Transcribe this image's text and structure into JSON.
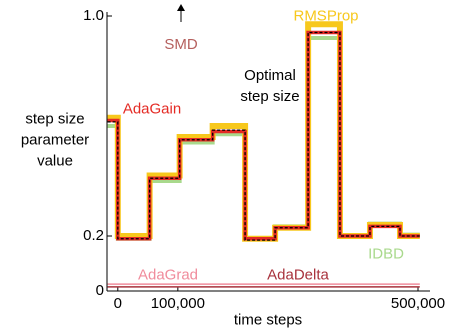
{
  "chart_data": {
    "type": "line",
    "step": "post",
    "xlabel": "time steps",
    "ylabel": "step size parameter value",
    "x": [
      -17000,
      0,
      53000,
      103000,
      158000,
      212000,
      262000,
      317000,
      370000,
      420000,
      470000,
      503000
    ],
    "xlim": [
      -18000,
      520000
    ],
    "xticks": [
      0,
      {
        "value": 100000,
        "label": "100,000"
      },
      {
        "value": 500000,
        "label": "500,000"
      }
    ],
    "ylim": [
      0,
      1.0
    ],
    "yticks": [
      0,
      0.2,
      {
        "value": 1.0,
        "label": "1.0"
      }
    ],
    "series": [
      {
        "name": "IDBD",
        "color": "#a9d98c",
        "values": [
          0.6,
          0.19,
          0.4,
          0.54,
          0.57,
          0.19,
          0.235,
          0.92,
          0.2,
          0.245,
          0.205,
          0.205
        ]
      },
      {
        "name": "RMSProp",
        "color": "#f7c81c",
        "values": [
          0.63,
          0.2,
          0.42,
          0.56,
          0.6,
          0.19,
          0.23,
          0.97,
          0.2,
          0.24,
          0.2,
          0.2
        ]
      },
      {
        "name": "AdaGain",
        "color": "#e42a24",
        "values": [
          0.62,
          0.19,
          0.41,
          0.55,
          0.58,
          0.19,
          0.23,
          0.94,
          0.2,
          0.235,
          0.2,
          0.2
        ]
      },
      {
        "name": "Optimal step size",
        "color": "#000000",
        "dashed": true,
        "values": [
          0.615,
          0.19,
          0.41,
          0.55,
          0.585,
          0.185,
          0.23,
          0.94,
          0.2,
          0.235,
          0.2,
          0.2
        ]
      },
      {
        "name": "AdaGrad",
        "color": "#f08c9c",
        "values": [
          0.025,
          0.025,
          0.025,
          0.025,
          0.025,
          0.025,
          0.025,
          0.025,
          0.025,
          0.025,
          0.025,
          0.025
        ]
      },
      {
        "name": "AdaDelta",
        "color": "#a8323c",
        "values": [
          0.015,
          0.015,
          0.015,
          0.015,
          0.015,
          0.015,
          0.015,
          0.015,
          0.015,
          0.015,
          0.015,
          0.015
        ]
      }
    ],
    "annotations": [
      {
        "text": "SMD",
        "color": "#b5605e"
      }
    ]
  }
}
